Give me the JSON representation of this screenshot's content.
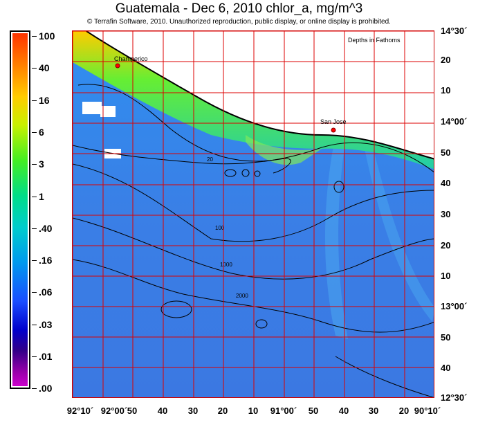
{
  "title": "Guatemala - Dec 6, 2010  chlor_a, mg/m^3",
  "copyright": "© Terrafin Software,  2010.  Unauthorized reproduction, public display, or online display is prohibited.",
  "scale": {
    "labels": [
      "100",
      "40",
      "16",
      "6",
      "3",
      "1",
      ".40",
      ".16",
      ".06",
      ".03",
      ".01",
      ".00"
    ],
    "colors": [
      "#ff3300",
      "#ff8800",
      "#ffcc00",
      "#44ee22",
      "#00cccc",
      "#1a4dff",
      "#0000cc",
      "#cc00cc"
    ]
  },
  "map": {
    "depth_legend": "Depths in Fathoms",
    "places": [
      {
        "name": "Champerico"
      },
      {
        "name": "San Jose"
      }
    ],
    "contours": [
      "20",
      "100",
      "1000",
      "2000"
    ],
    "lat_labels": [
      "14°30´",
      "20",
      "10",
      "14°00´",
      "50",
      "40",
      "30",
      "20",
      "10",
      "13°00´",
      "50",
      "40",
      "12°30´"
    ],
    "lon_labels": [
      "92°10´",
      "92°00´",
      "50",
      "40",
      "30",
      "20",
      "10",
      "91°00´",
      "50",
      "40",
      "30",
      "20",
      "90°10´"
    ],
    "grid_color": "#dd0000",
    "ocean_color": "#3a86e6",
    "land_color": "#ffffff",
    "coast_color": "#000000"
  }
}
